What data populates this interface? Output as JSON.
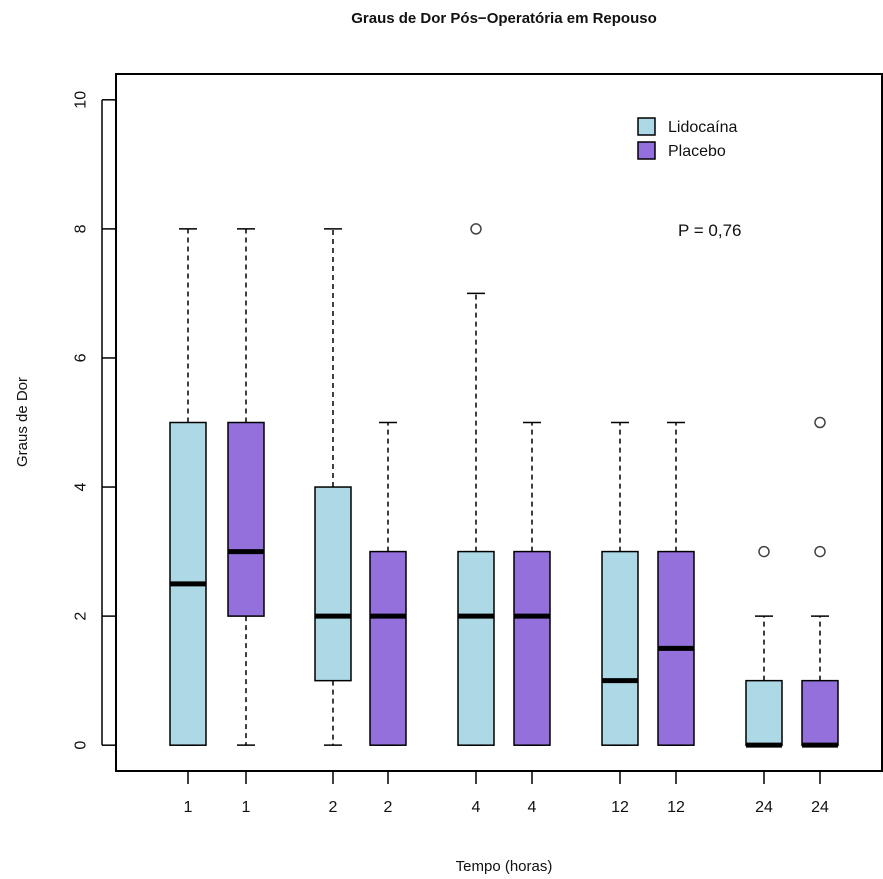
{
  "chart_data": {
    "type": "boxplot",
    "title": "Graus de Dor Pós−Operatória em Repouso",
    "xlabel": "Tempo (horas)",
    "ylabel": "Graus de Dor",
    "ylim": [
      -0.4,
      10.4
    ],
    "yticks": [
      0,
      2,
      4,
      6,
      8,
      10
    ],
    "grid": false,
    "legend_position": "top-right",
    "annotation": "P = 0,76",
    "series": [
      {
        "name": "Lidocaína",
        "color": "#add8e6"
      },
      {
        "name": "Placebo",
        "color": "#9370db"
      }
    ],
    "boxes": [
      {
        "label": "1",
        "series": "Lidocaína",
        "whisker_low": 0,
        "q1": 0,
        "median": 2.5,
        "q3": 5,
        "whisker_high": 8,
        "outliers": []
      },
      {
        "label": "1",
        "series": "Placebo",
        "whisker_low": 0,
        "q1": 2,
        "median": 3,
        "q3": 5,
        "whisker_high": 8,
        "outliers": []
      },
      {
        "label": "2",
        "series": "Lidocaína",
        "whisker_low": 0,
        "q1": 1,
        "median": 2,
        "q3": 4,
        "whisker_high": 8,
        "outliers": []
      },
      {
        "label": "2",
        "series": "Placebo",
        "whisker_low": 0,
        "q1": 0,
        "median": 2,
        "q3": 3,
        "whisker_high": 5,
        "outliers": []
      },
      {
        "label": "4",
        "series": "Lidocaína",
        "whisker_low": 0,
        "q1": 0,
        "median": 2,
        "q3": 3,
        "whisker_high": 7,
        "outliers": [
          8
        ]
      },
      {
        "label": "4",
        "series": "Placebo",
        "whisker_low": 0,
        "q1": 0,
        "median": 2,
        "q3": 3,
        "whisker_high": 5,
        "outliers": []
      },
      {
        "label": "12",
        "series": "Lidocaína",
        "whisker_low": 0,
        "q1": 0,
        "median": 1,
        "q3": 3,
        "whisker_high": 5,
        "outliers": []
      },
      {
        "label": "12",
        "series": "Placebo",
        "whisker_low": 0,
        "q1": 0,
        "median": 1.5,
        "q3": 3,
        "whisker_high": 5,
        "outliers": []
      },
      {
        "label": "24",
        "series": "Lidocaína",
        "whisker_low": 0,
        "q1": 0,
        "median": 0,
        "q3": 1,
        "whisker_high": 2,
        "outliers": [
          3
        ]
      },
      {
        "label": "24",
        "series": "Placebo",
        "whisker_low": 0,
        "q1": 0,
        "median": 0,
        "q3": 1,
        "whisker_high": 2,
        "outliers": [
          3,
          5
        ]
      }
    ]
  }
}
